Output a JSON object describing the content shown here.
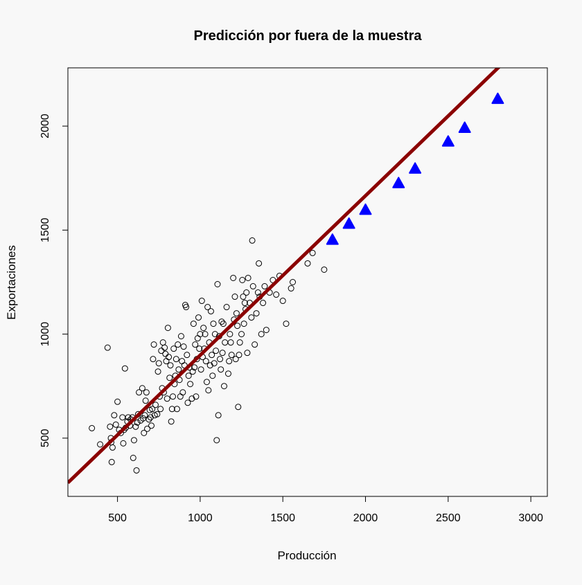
{
  "chart_data": {
    "type": "scatter",
    "title": "Predicción por fuera de la muestra",
    "xlabel": "Producción",
    "ylabel": "Exportaciones",
    "xlim": [
      200,
      3100
    ],
    "ylim": [
      220,
      2280
    ],
    "xticks": [
      "500",
      "1000",
      "1500",
      "2000",
      "2500",
      "3000"
    ],
    "yticks": [
      "500",
      "1000",
      "1500",
      "2000"
    ],
    "grid": false,
    "legend": "none",
    "colors": {
      "background": "#f8f8f8",
      "points": "#000000",
      "fit_line": "#8b0000",
      "predictions": "#0000ff"
    },
    "fit_line": {
      "intercept": 132.0,
      "slope": 0.7666
    },
    "observed": {
      "marker": "open-circle",
      "points": [
        [
          345,
          548
        ],
        [
          395,
          470
        ],
        [
          440,
          935
        ],
        [
          455,
          555
        ],
        [
          460,
          500
        ],
        [
          462,
          480
        ],
        [
          465,
          385
        ],
        [
          470,
          455
        ],
        [
          480,
          610
        ],
        [
          490,
          565
        ],
        [
          500,
          675
        ],
        [
          510,
          540
        ],
        [
          520,
          525
        ],
        [
          530,
          600
        ],
        [
          535,
          475
        ],
        [
          540,
          540
        ],
        [
          545,
          835
        ],
        [
          550,
          550
        ],
        [
          560,
          580
        ],
        [
          565,
          600
        ],
        [
          575,
          560
        ],
        [
          580,
          590
        ],
        [
          590,
          600
        ],
        [
          595,
          405
        ],
        [
          600,
          490
        ],
        [
          610,
          555
        ],
        [
          615,
          345
        ],
        [
          620,
          575
        ],
        [
          625,
          615
        ],
        [
          630,
          720
        ],
        [
          640,
          585
        ],
        [
          650,
          740
        ],
        [
          655,
          595
        ],
        [
          660,
          525
        ],
        [
          665,
          610
        ],
        [
          670,
          680
        ],
        [
          675,
          720
        ],
        [
          680,
          545
        ],
        [
          690,
          590
        ],
        [
          695,
          635
        ],
        [
          700,
          600
        ],
        [
          705,
          560
        ],
        [
          710,
          640
        ],
        [
          715,
          880
        ],
        [
          720,
          950
        ],
        [
          725,
          610
        ],
        [
          730,
          660
        ],
        [
          740,
          615
        ],
        [
          745,
          820
        ],
        [
          750,
          860
        ],
        [
          755,
          700
        ],
        [
          760,
          640
        ],
        [
          765,
          920
        ],
        [
          770,
          740
        ],
        [
          775,
          960
        ],
        [
          780,
          720
        ],
        [
          785,
          935
        ],
        [
          790,
          905
        ],
        [
          795,
          870
        ],
        [
          800,
          690
        ],
        [
          805,
          1030
        ],
        [
          810,
          890
        ],
        [
          815,
          790
        ],
        [
          820,
          850
        ],
        [
          825,
          580
        ],
        [
          830,
          640
        ],
        [
          835,
          700
        ],
        [
          840,
          930
        ],
        [
          845,
          760
        ],
        [
          850,
          800
        ],
        [
          855,
          880
        ],
        [
          860,
          640
        ],
        [
          865,
          950
        ],
        [
          870,
          830
        ],
        [
          875,
          780
        ],
        [
          880,
          700
        ],
        [
          885,
          990
        ],
        [
          890,
          870
        ],
        [
          895,
          720
        ],
        [
          900,
          940
        ],
        [
          905,
          850
        ],
        [
          910,
          1140
        ],
        [
          915,
          1130
        ],
        [
          920,
          900
        ],
        [
          925,
          670
        ],
        [
          930,
          800
        ],
        [
          935,
          840
        ],
        [
          940,
          760
        ],
        [
          950,
          690
        ],
        [
          955,
          820
        ],
        [
          960,
          1050
        ],
        [
          965,
          840
        ],
        [
          970,
          950
        ],
        [
          975,
          700
        ],
        [
          980,
          880
        ],
        [
          985,
          980
        ],
        [
          990,
          1080
        ],
        [
          995,
          930
        ],
        [
          1000,
          1000
        ],
        [
          1005,
          830
        ],
        [
          1010,
          1160
        ],
        [
          1015,
          890
        ],
        [
          1020,
          1030
        ],
        [
          1025,
          930
        ],
        [
          1030,
          1000
        ],
        [
          1035,
          870
        ],
        [
          1040,
          770
        ],
        [
          1045,
          1130
        ],
        [
          1050,
          730
        ],
        [
          1055,
          960
        ],
        [
          1060,
          850
        ],
        [
          1065,
          1110
        ],
        [
          1070,
          900
        ],
        [
          1075,
          800
        ],
        [
          1080,
          1050
        ],
        [
          1085,
          860
        ],
        [
          1090,
          1000
        ],
        [
          1095,
          920
        ],
        [
          1100,
          490
        ],
        [
          1105,
          1240
        ],
        [
          1110,
          610
        ],
        [
          1115,
          990
        ],
        [
          1120,
          880
        ],
        [
          1125,
          830
        ],
        [
          1130,
          1060
        ],
        [
          1135,
          910
        ],
        [
          1140,
          1050
        ],
        [
          1145,
          750
        ],
        [
          1150,
          960
        ],
        [
          1160,
          1130
        ],
        [
          1170,
          810
        ],
        [
          1175,
          870
        ],
        [
          1180,
          1000
        ],
        [
          1185,
          960
        ],
        [
          1190,
          900
        ],
        [
          1200,
          1270
        ],
        [
          1205,
          1070
        ],
        [
          1210,
          1180
        ],
        [
          1215,
          880
        ],
        [
          1220,
          1100
        ],
        [
          1225,
          1040
        ],
        [
          1230,
          650
        ],
        [
          1235,
          900
        ],
        [
          1240,
          960
        ],
        [
          1250,
          1000
        ],
        [
          1255,
          1260
        ],
        [
          1260,
          1180
        ],
        [
          1265,
          1050
        ],
        [
          1270,
          1150
        ],
        [
          1275,
          1120
        ],
        [
          1280,
          1200
        ],
        [
          1285,
          910
        ],
        [
          1290,
          1270
        ],
        [
          1300,
          1150
        ],
        [
          1310,
          1080
        ],
        [
          1315,
          1450
        ],
        [
          1320,
          1230
        ],
        [
          1330,
          950
        ],
        [
          1340,
          1100
        ],
        [
          1350,
          1200
        ],
        [
          1355,
          1340
        ],
        [
          1360,
          1180
        ],
        [
          1370,
          1000
        ],
        [
          1380,
          1150
        ],
        [
          1390,
          1230
        ],
        [
          1400,
          1020
        ],
        [
          1420,
          1200
        ],
        [
          1440,
          1260
        ],
        [
          1460,
          1190
        ],
        [
          1480,
          1280
        ],
        [
          1500,
          1160
        ],
        [
          1520,
          1050
        ],
        [
          1550,
          1220
        ],
        [
          1560,
          1250
        ],
        [
          1650,
          1340
        ],
        [
          1680,
          1390
        ],
        [
          1750,
          1310
        ]
      ]
    },
    "predictions": {
      "marker": "filled-triangle",
      "x": [
        1800,
        1900,
        2000,
        2200,
        2300,
        2500,
        2600,
        2800
      ],
      "y": [
        1454,
        1531,
        1598,
        1726,
        1796,
        1926,
        1992,
        2131
      ]
    }
  }
}
